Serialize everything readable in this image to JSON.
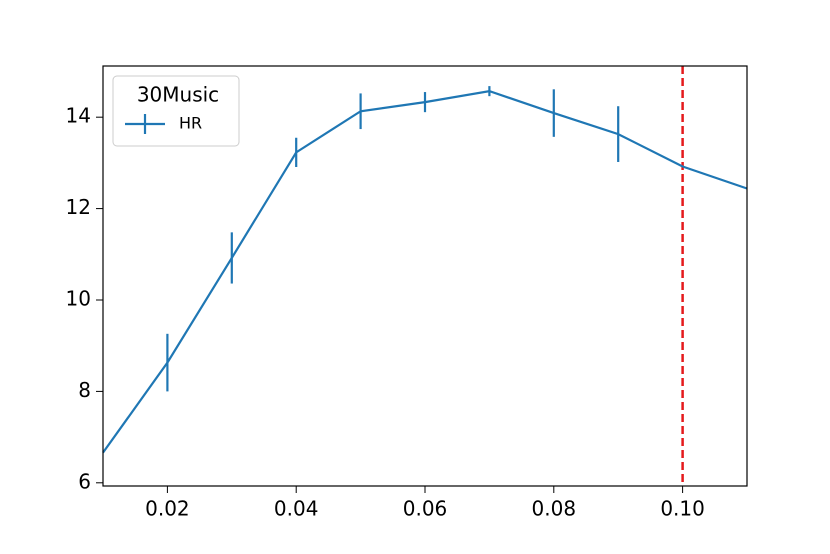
{
  "chart_data": {
    "type": "line",
    "x": [
      0.01,
      0.02,
      0.03,
      0.04,
      0.05,
      0.06,
      0.07,
      0.08,
      0.09,
      0.1,
      0.11
    ],
    "series": [
      {
        "name": "HR",
        "color": "#1f77b4",
        "values": [
          6.66,
          8.63,
          10.92,
          13.23,
          14.13,
          14.33,
          14.57,
          14.09,
          13.63,
          12.92,
          12.44
        ],
        "errors": [
          0,
          0.63,
          0.56,
          0.32,
          0.39,
          0.22,
          0.11,
          0.52,
          0.61,
          0,
          0
        ]
      }
    ],
    "legend_title": "30Music",
    "legend": "upper left",
    "xlim": [
      0.01,
      0.11
    ],
    "xticks": [
      0.02,
      0.04,
      0.06,
      0.08,
      {
        "value": 0.1,
        "label": "0.10"
      }
    ],
    "ylim": [
      5.93,
      15.12
    ],
    "yticks": [
      6,
      8,
      10,
      12,
      14
    ],
    "vline": {
      "x": 0.1,
      "color": "#e41a1c",
      "style": "dashed"
    }
  }
}
